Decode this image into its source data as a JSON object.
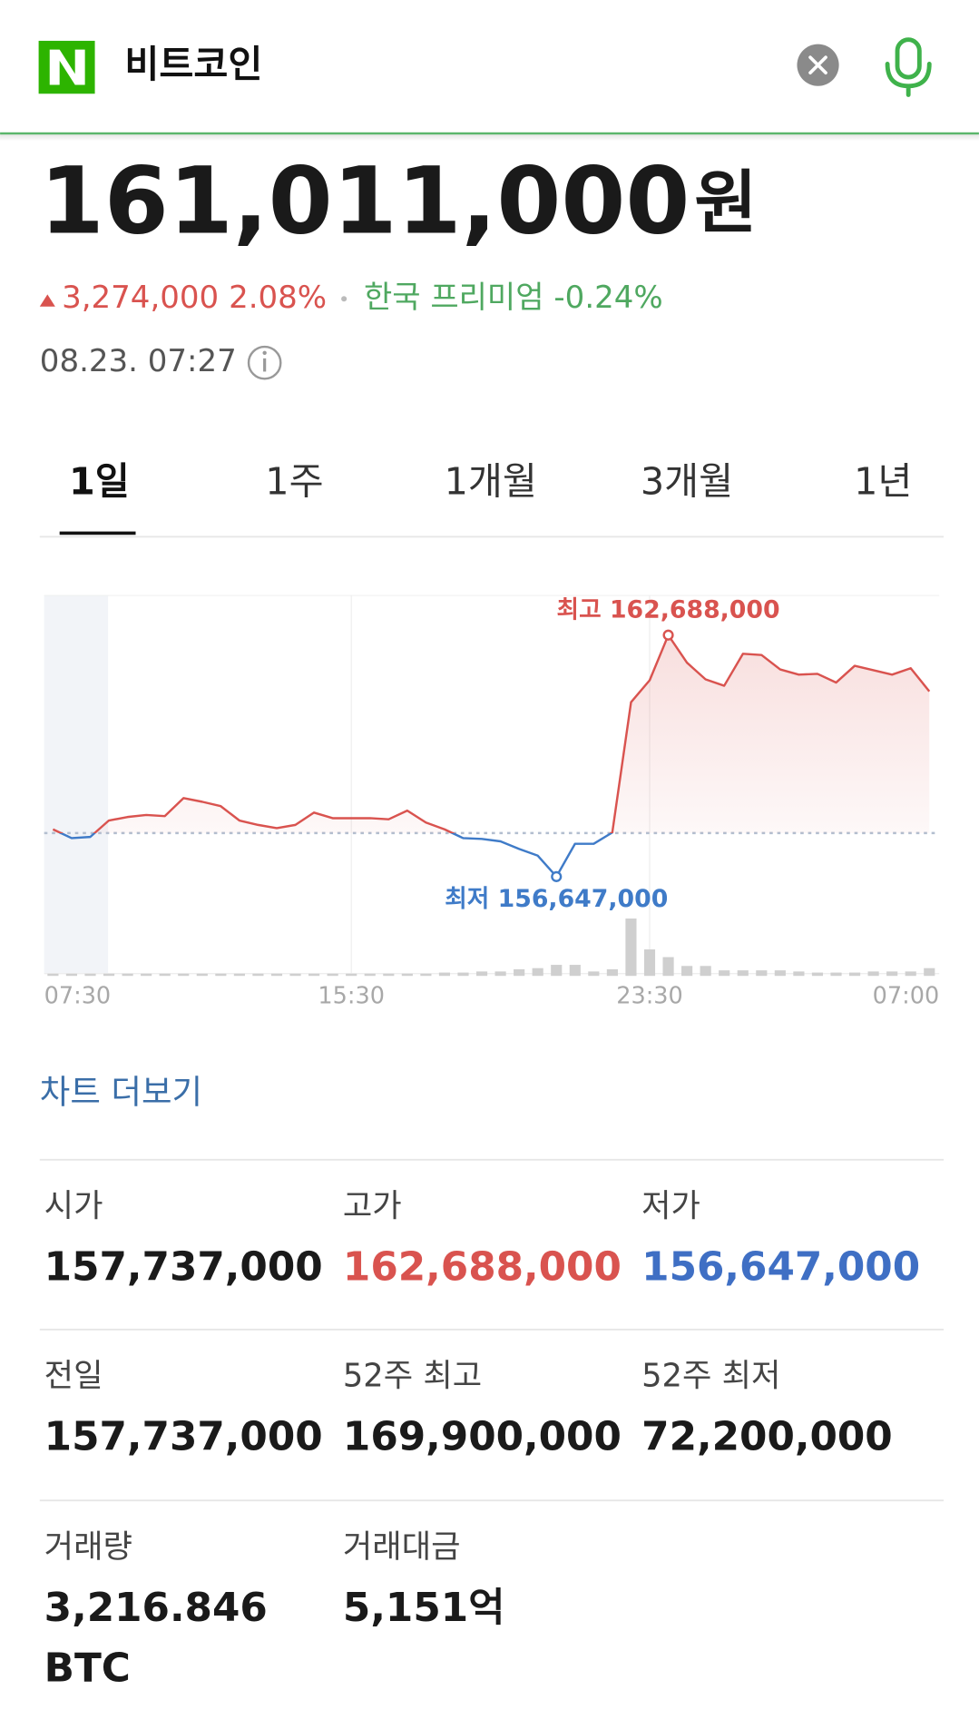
{
  "header": {
    "query": "비트코인"
  },
  "price": {
    "value": "161,011,000",
    "unit": "원",
    "change": "3,274,000",
    "change_pct": "2.08%",
    "premium_label": "한국 프리미엄",
    "premium": "-0.24%",
    "timestamp": "08.23. 07:27"
  },
  "tabs": [
    "1일",
    "1주",
    "1개월",
    "3개월",
    "1년"
  ],
  "active_tab": 0,
  "chart_data": {
    "type": "line",
    "categories": [
      "07:30",
      null,
      null,
      null,
      null,
      null,
      null,
      null,
      null,
      null,
      null,
      null,
      null,
      null,
      null,
      null,
      "15:30",
      null,
      null,
      null,
      null,
      null,
      null,
      null,
      null,
      null,
      null,
      null,
      null,
      null,
      null,
      null,
      "23:30",
      null,
      null,
      null,
      null,
      null,
      null,
      null,
      null,
      null,
      null,
      null,
      null,
      null,
      null,
      "07:00"
    ],
    "values": [
      157830000,
      157610000,
      157640000,
      158050000,
      158140000,
      158190000,
      158160000,
      158610000,
      158520000,
      158410000,
      158050000,
      157940000,
      157860000,
      157940000,
      158250000,
      158110000,
      158110000,
      158110000,
      158080000,
      158300000,
      158000000,
      157830000,
      157610000,
      157590000,
      157530000,
      157340000,
      157170000,
      156647000,
      157470000,
      157470000,
      157750000,
      161010000,
      161560000,
      162688000,
      162000000,
      161580000,
      161420000,
      162220000,
      162190000,
      161830000,
      161700000,
      161720000,
      161500000,
      161920000,
      161810000,
      161700000,
      161860000,
      161280000
    ],
    "up_color": "#d9534f",
    "down_color": "#3f7bc8",
    "reference_line": 157737000,
    "ylim": [
      154220000,
      163680000
    ],
    "annotations": {
      "high": {
        "text": "최고 162,688,000",
        "color": "#d9534f"
      },
      "low": {
        "text": "최저 156,647,000",
        "color": "#3f7bc8"
      }
    },
    "volume": {
      "values": [
        2,
        2,
        2,
        2,
        2,
        2,
        2,
        2,
        2,
        2,
        2,
        2,
        2,
        2,
        2,
        2,
        2,
        2,
        2,
        2,
        2,
        3,
        3,
        4,
        4,
        6,
        7,
        10,
        10,
        4,
        6,
        52,
        24,
        17,
        9,
        9,
        5,
        5,
        5,
        5,
        4,
        3,
        3,
        3,
        4,
        4,
        4,
        7
      ],
      "ylim": [
        0,
        100
      ],
      "color": "#cfcfcf"
    }
  },
  "more_link": "차트 더보기",
  "stats": [
    {
      "label": "시가",
      "value": "157,737,000"
    },
    {
      "label": "고가",
      "value": "162,688,000",
      "color": "#d9534f"
    },
    {
      "label": "저가",
      "value": "156,647,000",
      "color": "#3f6fc4"
    },
    {
      "label": "전일",
      "value": "157,737,000"
    },
    {
      "label": "52주 최고",
      "value": "169,900,000"
    },
    {
      "label": "52주 최저",
      "value": "72,200,000"
    },
    {
      "label": "거래량",
      "value": "3,216.846",
      "unit": "BTC"
    },
    {
      "label": "거래대금",
      "value": "5,151억"
    }
  ]
}
